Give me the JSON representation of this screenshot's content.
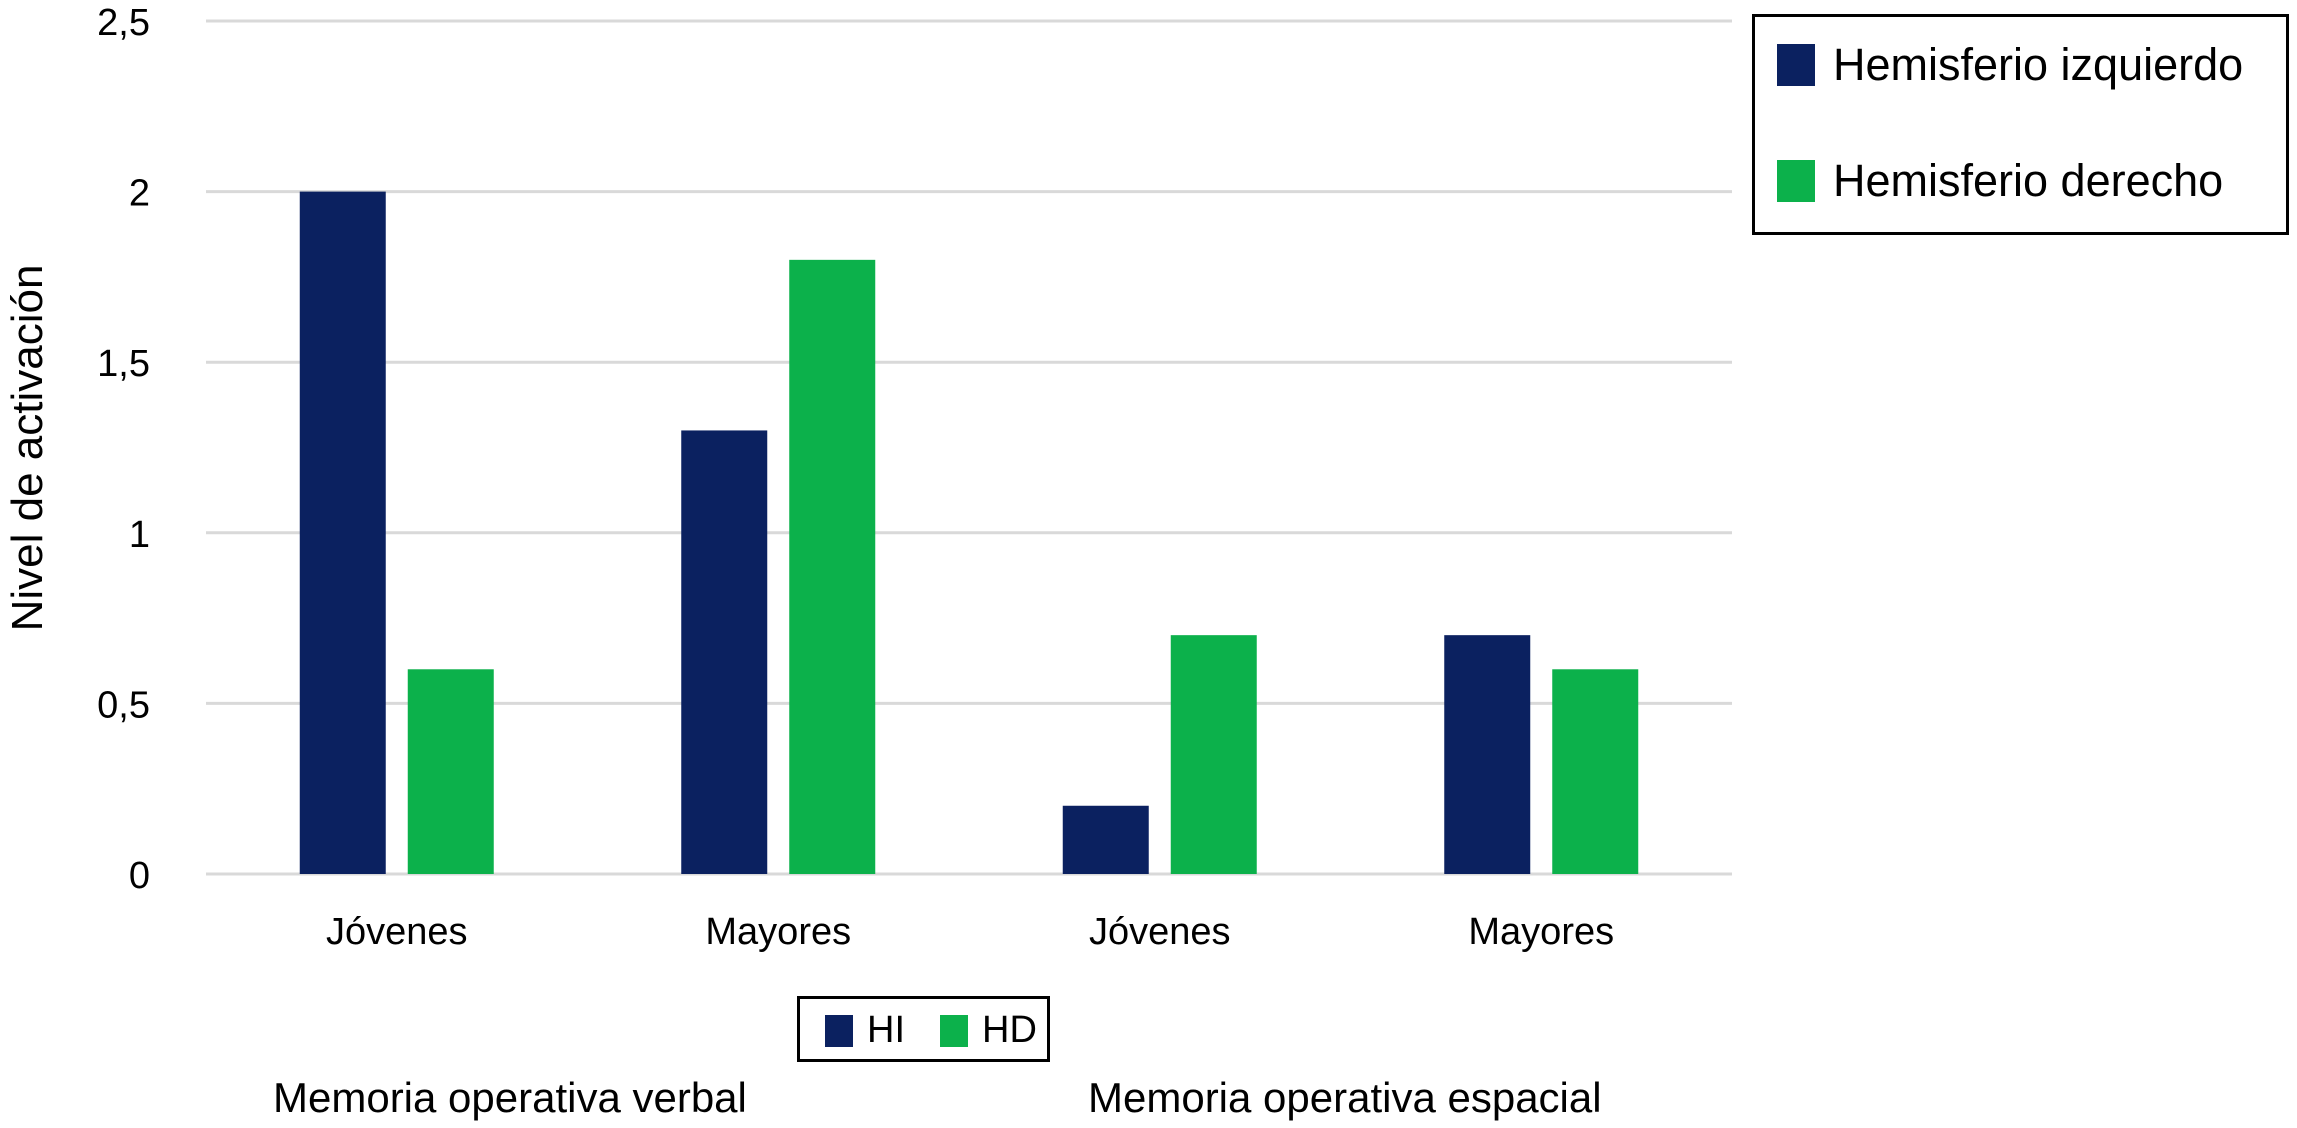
{
  "colors": {
    "hi": "#0b2160",
    "hd": "#0cb14b",
    "grid": "#d9d9d9"
  },
  "legend_main": {
    "items": [
      {
        "label": "Hemisferio izquierdo",
        "color_key": "hi"
      },
      {
        "label": "Hemisferio derecho",
        "color_key": "hd"
      }
    ]
  },
  "legend_short": {
    "items": [
      {
        "label": "HI",
        "color_key": "hi"
      },
      {
        "label": "HD",
        "color_key": "hd"
      }
    ]
  },
  "group_labels": [
    "Memoria operativa verbal",
    "Memoria operativa espacial"
  ],
  "chart_data": {
    "type": "bar",
    "categories": [
      "Jóvenes",
      "Mayores",
      "Jóvenes",
      "Mayores"
    ],
    "series": [
      {
        "name": "Hemisferio izquierdo",
        "values": [
          2.0,
          1.3,
          0.2,
          0.7
        ]
      },
      {
        "name": "Hemisferio derecho",
        "values": [
          0.6,
          1.8,
          0.7,
          0.6
        ]
      }
    ],
    "ylabel": "Nivel de activación",
    "xlabel": "",
    "ylim": [
      0,
      2.5
    ],
    "yticks": [
      "0",
      "0,5",
      "1",
      "1,5",
      "2",
      "2,5"
    ],
    "grid": true,
    "legend_position": "top-right"
  }
}
